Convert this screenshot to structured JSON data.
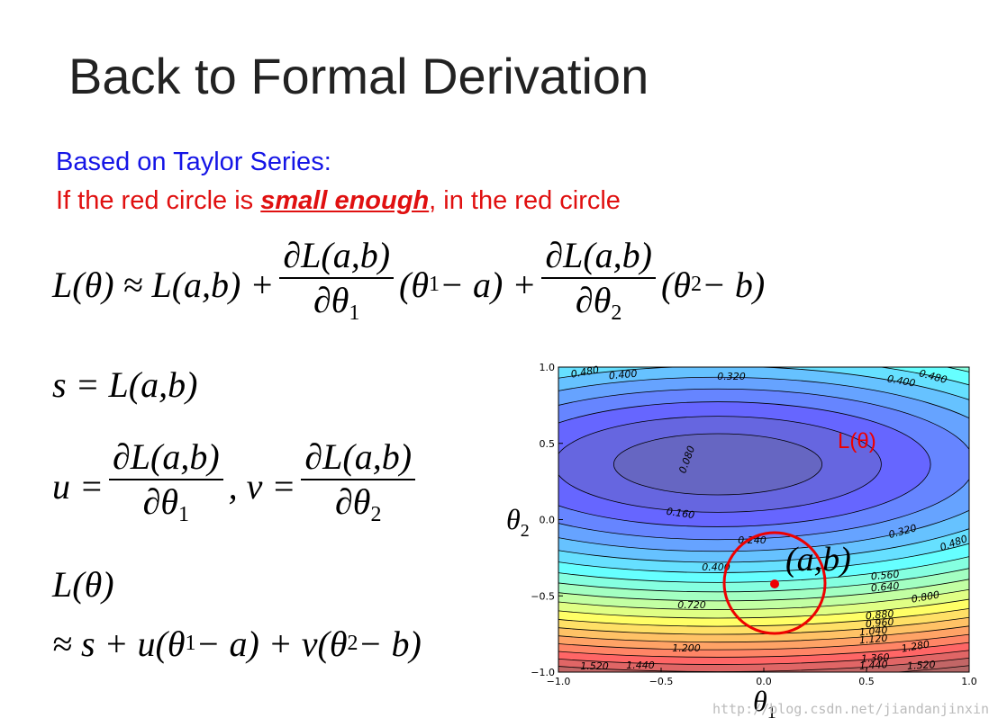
{
  "title": "Back to Formal Derivation",
  "intro": "Based on Taylor Series:",
  "condition": {
    "before": "If the red circle is ",
    "emphasis": "small enough",
    "after": ", in the red circle"
  },
  "taylor": {
    "lhs": "L(θ) ≈ L(a,b) +",
    "num1": "∂L(a,b)",
    "den1": "∂θ",
    "den1_sub": "1",
    "mid_a": "(θ",
    "mid_sub": "1",
    "mid_b": " − a) +",
    "num2": "∂L(a,b)",
    "den2": "∂θ",
    "den2_sub": "2",
    "end_a": "(θ",
    "end_sub": "2",
    "end_b": " − b)"
  },
  "s_def": "s = L(a,b)",
  "uv_def": {
    "u": "u =",
    "num1": "∂L(a,b)",
    "den1": "∂θ",
    "den1_sub": "1",
    "v": ", v =",
    "num2": "∂L(a,b)",
    "den2": "∂θ",
    "den2_sub": "2"
  },
  "approx": {
    "lhs": "L(θ)",
    "rhs_a": "≈ s + u(θ",
    "sub1": "1",
    "rhs_b": " − a) + v(θ",
    "sub2": "2",
    "rhs_c": " − b)"
  },
  "plot": {
    "xlim": [
      -1,
      1
    ],
    "ylim": [
      -1,
      1
    ],
    "xticks": [
      {
        "value": -1,
        "label": "−1.0"
      },
      {
        "value": -0.5,
        "label": "−0.5"
      },
      {
        "value": 0,
        "label": "0.0"
      },
      {
        "value": 0.5,
        "label": "0.5"
      },
      {
        "value": 1,
        "label": "1.0"
      }
    ],
    "yticks": [
      {
        "value": -1,
        "label": "−1.0"
      },
      {
        "value": -0.5,
        "label": "−0.5"
      },
      {
        "value": 0,
        "label": "0.0"
      },
      {
        "value": 0.5,
        "label": "0.5"
      },
      {
        "value": 1,
        "label": "1.0"
      }
    ],
    "xlabel": {
      "text": "θ",
      "sub": "1"
    },
    "ylabel": {
      "text": "θ",
      "sub": "2"
    },
    "curve_label": "L(θ)",
    "point_label": "(a,b)",
    "contour_labels": [
      "0.480",
      "0.400",
      "0.320",
      "0.400",
      "0.480",
      "0.080",
      "0.160",
      "0.240",
      "0.320",
      "0.480",
      "0.400",
      "0.560",
      "0.640",
      "0.720",
      "0.800",
      "0.880",
      "0.960",
      "1.040",
      "1.120",
      "1.200",
      "1.280",
      "1.360",
      "1.440",
      "1.520",
      "1.440",
      "1.520"
    ]
  },
  "watermark": "http://blog.csdn.net/jiandanjinxin"
}
